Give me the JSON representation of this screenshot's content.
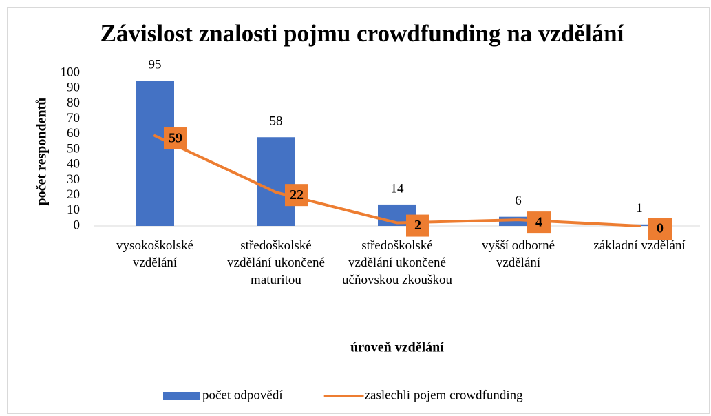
{
  "chart_data": {
    "type": "bar-line",
    "title": "Závislost znalosti pojmu crowdfunding na vzdělání",
    "ylabel": "počet respondentů",
    "xlabel": "úroveň vzdělání",
    "categories": [
      "vysokoškolské vzdělání",
      "středoškolské vzdělání ukončené maturitou",
      "středoškolské vzdělání ukončené učňovskou zkouškou",
      "vyšší odborné vzdělání",
      "základní vzdělání"
    ],
    "series": [
      {
        "name": "počet odpovědí",
        "type": "bar",
        "color": "#4472c4",
        "values": [
          95,
          58,
          14,
          6,
          1
        ]
      },
      {
        "name": "zaslechli pojem crowdfunding",
        "type": "line",
        "color": "#ed7d31",
        "values": [
          59,
          22,
          2,
          4,
          0
        ]
      }
    ],
    "ylim": [
      0,
      100
    ],
    "yticks": [
      0,
      10,
      20,
      30,
      40,
      50,
      60,
      70,
      80,
      90,
      100
    ],
    "grid": false,
    "legend": "bottom"
  }
}
